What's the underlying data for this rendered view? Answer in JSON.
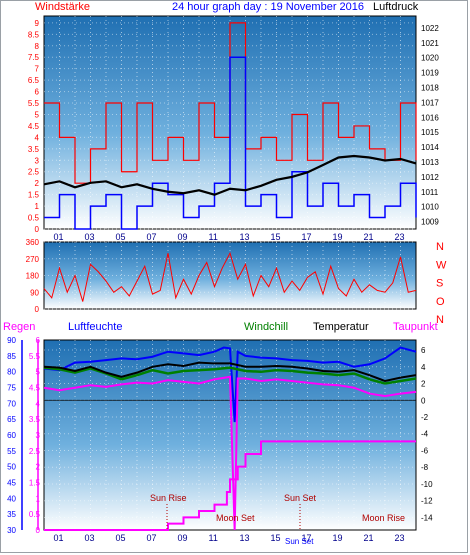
{
  "header": {
    "left": "Windstärke",
    "title": "24 hour graph day : 19 November 2016",
    "right": "Luftdruck"
  },
  "colors": {
    "red": "#ff0000",
    "blue": "#0000ff",
    "black": "#000000",
    "green": "#008000",
    "magenta": "#ff00ff",
    "darkred": "#b00000",
    "navy": "#00008b",
    "panel_top": "#2a78b8",
    "panel_bottom": "#ffffff"
  },
  "chart_data": [
    {
      "type": "line",
      "name": "wind-pressure",
      "y_left_label": "Windstärke",
      "y_left_ticks": [
        "0",
        "0.5",
        "1",
        "1.5",
        "2",
        "2.5",
        "3",
        "3.5",
        "4",
        "4.5",
        "5",
        "5.5",
        "6",
        "6.5",
        "7",
        "7.5",
        "8",
        "8.5",
        "9"
      ],
      "ylim_left": [
        0,
        9.3
      ],
      "y_right_label": "Luftdruck",
      "y_right_ticks": [
        "1009",
        "1010",
        "1011",
        "1012",
        "1013",
        "1014",
        "1015",
        "1016",
        "1017",
        "1018",
        "1019",
        "1020",
        "1021",
        "1022"
      ],
      "ylim_right": [
        1008.5,
        1022.8
      ],
      "x_ticks": [
        "01",
        "03",
        "05",
        "07",
        "09",
        "11",
        "13",
        "15",
        "17",
        "19",
        "21",
        "23"
      ],
      "xlim": [
        0,
        24
      ],
      "series": [
        {
          "color": "red",
          "points": [
            [
              0,
              5.5
            ],
            [
              1,
              4
            ],
            [
              2,
              2
            ],
            [
              3,
              3.5
            ],
            [
              4,
              5.5
            ],
            [
              5,
              2.5
            ],
            [
              6,
              5.5
            ],
            [
              7,
              3
            ],
            [
              8,
              4
            ],
            [
              9,
              3
            ],
            [
              10,
              5.5
            ],
            [
              11,
              4
            ],
            [
              12,
              9
            ],
            [
              13,
              3.5
            ],
            [
              14,
              4
            ],
            [
              15,
              3
            ],
            [
              16,
              5
            ],
            [
              17,
              3
            ],
            [
              18,
              5.5
            ],
            [
              19,
              4
            ],
            [
              20,
              4.5
            ],
            [
              21,
              3.5
            ],
            [
              22,
              3
            ],
            [
              23,
              5.5
            ],
            [
              24,
              3
            ]
          ]
        },
        {
          "color": "blue",
          "points": [
            [
              0,
              0.5
            ],
            [
              1,
              1.5
            ],
            [
              2,
              0
            ],
            [
              3,
              1
            ],
            [
              4,
              1.5
            ],
            [
              5,
              0
            ],
            [
              6,
              1
            ],
            [
              7,
              2
            ],
            [
              8,
              1.5
            ],
            [
              9,
              0.5
            ],
            [
              10,
              1
            ],
            [
              11,
              2
            ],
            [
              12,
              7.5
            ],
            [
              13,
              1
            ],
            [
              14,
              1.5
            ],
            [
              15,
              0.5
            ],
            [
              16,
              2.5
            ],
            [
              17,
              1
            ],
            [
              18,
              2
            ],
            [
              19,
              1
            ],
            [
              20,
              1.5
            ],
            [
              21,
              0.5
            ],
            [
              22,
              1
            ],
            [
              23,
              2
            ],
            [
              24,
              0.5
            ]
          ]
        },
        {
          "color": "black",
          "axis": "right",
          "points": [
            [
              0,
              1011.5
            ],
            [
              1,
              1011.7
            ],
            [
              2,
              1011.3
            ],
            [
              3,
              1011.6
            ],
            [
              4,
              1011.7
            ],
            [
              5,
              1011.3
            ],
            [
              6,
              1011.5
            ],
            [
              7,
              1011.2
            ],
            [
              8,
              1011.0
            ],
            [
              9,
              1010.9
            ],
            [
              10,
              1011.1
            ],
            [
              11,
              1010.8
            ],
            [
              12,
              1011.2
            ],
            [
              13,
              1011.1
            ],
            [
              14,
              1011.4
            ],
            [
              15,
              1011.8
            ],
            [
              16,
              1012.0
            ],
            [
              17,
              1012.3
            ],
            [
              18,
              1012.8
            ],
            [
              19,
              1013.3
            ],
            [
              20,
              1013.4
            ],
            [
              21,
              1013.3
            ],
            [
              22,
              1013.1
            ],
            [
              23,
              1013.2
            ],
            [
              24,
              1012.9
            ]
          ]
        }
      ]
    },
    {
      "type": "scatter",
      "name": "wind-direction",
      "y_left_ticks": [
        "0",
        "90",
        "180",
        "270",
        "360"
      ],
      "ylim": [
        0,
        360
      ],
      "y_right_labels": [
        "N",
        "W",
        "S",
        "O",
        "N"
      ],
      "xlim": [
        0,
        24
      ],
      "series": [
        {
          "color": "red",
          "points": [
            [
              0,
              110
            ],
            [
              0.5,
              60
            ],
            [
              1,
              220
            ],
            [
              1.5,
              90
            ],
            [
              2,
              180
            ],
            [
              2.5,
              40
            ],
            [
              3,
              240
            ],
            [
              3.5,
              200
            ],
            [
              4,
              150
            ],
            [
              4.5,
              90
            ],
            [
              5,
              120
            ],
            [
              5.5,
              70
            ],
            [
              6,
              150
            ],
            [
              6.5,
              230
            ],
            [
              7,
              80
            ],
            [
              7.5,
              100
            ],
            [
              8,
              300
            ],
            [
              8.5,
              60
            ],
            [
              9,
              160
            ],
            [
              9.5,
              80
            ],
            [
              10,
              180
            ],
            [
              10.5,
              250
            ],
            [
              11,
              120
            ],
            [
              11.5,
              220
            ],
            [
              12,
              300
            ],
            [
              12.5,
              160
            ],
            [
              13,
              240
            ],
            [
              13.5,
              70
            ],
            [
              14,
              180
            ],
            [
              14.5,
              120
            ],
            [
              15,
              220
            ],
            [
              15.5,
              90
            ],
            [
              16,
              150
            ],
            [
              16.5,
              100
            ],
            [
              17,
              170
            ],
            [
              17.5,
              200
            ],
            [
              18,
              80
            ],
            [
              18.5,
              230
            ],
            [
              19,
              110
            ],
            [
              19.5,
              70
            ],
            [
              20,
              160
            ],
            [
              20.5,
              90
            ],
            [
              21,
              130
            ],
            [
              21.5,
              100
            ],
            [
              22,
              90
            ],
            [
              22.5,
              140
            ],
            [
              23,
              280
            ],
            [
              23.5,
              90
            ],
            [
              24,
              100
            ]
          ]
        }
      ]
    },
    {
      "type": "line",
      "name": "temperature-humidity",
      "legend": [
        "Regen",
        "Luftfeuchte",
        "Windchill",
        "Temperatur",
        "Taupunkt"
      ],
      "y_regen_ticks": [
        "0",
        "0.5",
        "1",
        "1.5",
        "2",
        "2.5",
        "3",
        "3.5",
        "4",
        "4.5",
        "5",
        "5.5",
        "6"
      ],
      "y_humidity_ticks": [
        "30",
        "35",
        "40",
        "45",
        "50",
        "55",
        "60",
        "65",
        "70",
        "75",
        "80",
        "85",
        "90"
      ],
      "y_right_ticks": [
        "-14",
        "-12",
        "-10",
        "-8",
        "-6",
        "-4",
        "-2",
        "0",
        "2",
        "4",
        "6"
      ],
      "ylim_temp": [
        -15.5,
        7.2
      ],
      "x_ticks": [
        "01",
        "03",
        "05",
        "07",
        "09",
        "11",
        "13",
        "15",
        "17",
        "19",
        "21",
        "23"
      ],
      "xlim": [
        0,
        24
      ],
      "annotations": [
        "Sun Rise",
        "Moon Set",
        "Sun Set",
        "Moon Rise"
      ],
      "bottom_overlay": [
        "Sun Set",
        "17"
      ],
      "series": [
        {
          "color": "blue",
          "points": [
            [
              0,
              3.8
            ],
            [
              1,
              3.6
            ],
            [
              2,
              4.5
            ],
            [
              3,
              4.6
            ],
            [
              4,
              4.8
            ],
            [
              5,
              5.0
            ],
            [
              6,
              4.9
            ],
            [
              7,
              5.2
            ],
            [
              8,
              5.8
            ],
            [
              9,
              5.6
            ],
            [
              10,
              5.4
            ],
            [
              11,
              5.8
            ],
            [
              11.6,
              6.3
            ],
            [
              12,
              6.2
            ],
            [
              12.3,
              -2.6
            ],
            [
              12.5,
              5.8
            ],
            [
              13,
              5.3
            ],
            [
              14,
              5.1
            ],
            [
              15,
              5.0
            ],
            [
              16,
              4.8
            ],
            [
              17,
              4.7
            ],
            [
              18,
              4.5
            ],
            [
              19,
              4.6
            ],
            [
              20,
              4.0
            ],
            [
              21,
              4.3
            ],
            [
              22,
              5.0
            ],
            [
              23,
              6.3
            ],
            [
              24,
              5.8
            ]
          ]
        },
        {
          "color": "green",
          "points": [
            [
              0,
              3.9
            ],
            [
              1,
              3.7
            ],
            [
              2,
              3.3
            ],
            [
              3,
              3.8
            ],
            [
              4,
              3.2
            ],
            [
              5,
              2.5
            ],
            [
              6,
              3.0
            ],
            [
              7,
              3.6
            ],
            [
              8,
              3.2
            ],
            [
              9,
              3.5
            ],
            [
              10,
              3.6
            ],
            [
              11,
              3.7
            ],
            [
              12,
              3.9
            ],
            [
              13,
              3.5
            ],
            [
              14,
              3.4
            ],
            [
              15,
              3.6
            ],
            [
              16,
              3.5
            ],
            [
              17,
              3.3
            ],
            [
              18,
              3.2
            ],
            [
              19,
              3.0
            ],
            [
              20,
              3.2
            ],
            [
              21,
              2.5
            ],
            [
              22,
              2.0
            ],
            [
              23,
              2.3
            ],
            [
              24,
              2.6
            ]
          ]
        },
        {
          "color": "black",
          "points": [
            [
              0,
              4.0
            ],
            [
              1,
              3.9
            ],
            [
              2,
              3.5
            ],
            [
              3,
              4.0
            ],
            [
              4,
              3.3
            ],
            [
              5,
              2.8
            ],
            [
              6,
              3.3
            ],
            [
              7,
              4.0
            ],
            [
              8,
              4.3
            ],
            [
              9,
              4.1
            ],
            [
              10,
              4.5
            ],
            [
              11,
              4.4
            ],
            [
              12,
              4.4
            ],
            [
              13,
              4.0
            ],
            [
              14,
              4.0
            ],
            [
              15,
              4.1
            ],
            [
              16,
              4.0
            ],
            [
              17,
              3.8
            ],
            [
              18,
              3.5
            ],
            [
              19,
              3.4
            ],
            [
              20,
              3.6
            ],
            [
              21,
              3.0
            ],
            [
              22,
              2.3
            ],
            [
              23,
              2.7
            ],
            [
              24,
              3.0
            ]
          ]
        },
        {
          "color": "magenta",
          "points": [
            [
              0,
              1.5
            ],
            [
              1,
              1.2
            ],
            [
              2,
              1.5
            ],
            [
              3,
              1.8
            ],
            [
              4,
              1.6
            ],
            [
              5,
              1.9
            ],
            [
              6,
              2.1
            ],
            [
              7,
              2.0
            ],
            [
              8,
              2.4
            ],
            [
              9,
              2.2
            ],
            [
              10,
              2.0
            ],
            [
              11,
              2.5
            ],
            [
              12,
              2.8
            ],
            [
              12.3,
              -15.5
            ],
            [
              12.5,
              2.6
            ],
            [
              13,
              2.6
            ],
            [
              14,
              2.3
            ],
            [
              15,
              2.5
            ],
            [
              16,
              2.3
            ],
            [
              17,
              2.1
            ],
            [
              18,
              1.9
            ],
            [
              19,
              1.8
            ],
            [
              20,
              1.5
            ],
            [
              21,
              0.8
            ],
            [
              22,
              0.5
            ],
            [
              23,
              0.8
            ],
            [
              24,
              1.0
            ]
          ]
        },
        {
          "color": "magenta",
          "step": true,
          "axis": "regen",
          "points": [
            [
              0,
              0
            ],
            [
              7.5,
              0
            ],
            [
              8,
              0.2
            ],
            [
              9,
              0.4
            ],
            [
              10,
              0.6
            ],
            [
              11,
              0.8
            ],
            [
              11.8,
              1.2
            ],
            [
              12,
              1.6
            ],
            [
              12.5,
              2.0
            ],
            [
              13,
              2.4
            ],
            [
              14,
              2.8
            ],
            [
              24,
              2.8
            ]
          ]
        }
      ]
    }
  ]
}
